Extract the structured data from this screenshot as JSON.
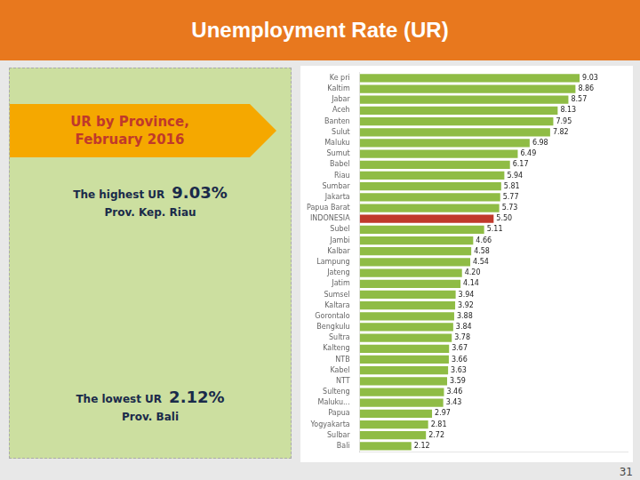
{
  "chart_data": {
    "type": "bar",
    "orientation": "horizontal",
    "title": "Unemployment Rate (UR)",
    "annotations": [
      "UR by Province,",
      "February 2016",
      "The highest UR",
      "9.03%",
      "Prov. Kep. Riau",
      "The lowest UR",
      "2.12%",
      "Prov. Bali",
      "31"
    ],
    "categories": [
      "Ke pri",
      "Kaltim",
      "Jabar",
      "Aceh",
      "Banten",
      "Sulut",
      "Maluku",
      "Sumut",
      "Babel",
      "Riau",
      "Sumbar",
      "Jakarta",
      "Papua Barat",
      "INDONESIA",
      "Subel",
      "Jambi",
      "Kalbar",
      "Lampung",
      "Jateng",
      "Jatim",
      "Sumsel",
      "Kaltara",
      "Gorontalo",
      "Bengkulu",
      "Sultra",
      "Kalteng",
      "NTB",
      "Kabel",
      "NTT",
      "Sulteng",
      "Maluku...",
      "Papua",
      "Yogyakarta",
      "Sulbar",
      "Bali"
    ],
    "values": [
      9.03,
      8.86,
      8.57,
      8.13,
      7.95,
      7.82,
      6.98,
      6.49,
      6.17,
      5.94,
      5.81,
      5.77,
      5.73,
      5.5,
      5.11,
      4.66,
      4.58,
      4.54,
      4.2,
      4.14,
      3.94,
      3.92,
      3.88,
      3.84,
      3.78,
      3.67,
      3.66,
      3.63,
      3.59,
      3.46,
      3.43,
      2.97,
      2.81,
      2.72,
      2.12
    ],
    "value_labels": [
      "9.03",
      "8.86",
      "8.57",
      "8.13",
      "7.95",
      "7.82",
      "6.98",
      "6.49",
      "6.17",
      "5.94",
      "5.81",
      "5.77",
      "5.73",
      "5.50",
      "5.11",
      "4.66",
      "4.58",
      "4.54",
      "4.20",
      "4.14",
      "3.94",
      "3.92",
      "3.88",
      "3.84",
      "3.78",
      "3.67",
      "3.66",
      "3.63",
      "3.59",
      "3.46",
      "3.43",
      "2.97",
      "2.81",
      "2.72",
      "2.12"
    ],
    "colors": [
      "#8fbc45",
      "#8fbc45",
      "#8fbc45",
      "#8fbc45",
      "#8fbc45",
      "#8fbc45",
      "#8fbc45",
      "#8fbc45",
      "#8fbc45",
      "#8fbc45",
      "#8fbc45",
      "#8fbc45",
      "#8fbc45",
      "#c0392b",
      "#8fbc45",
      "#8fbc45",
      "#8fbc45",
      "#8fbc45",
      "#8fbc45",
      "#8fbc45",
      "#8fbc45",
      "#8fbc45",
      "#8fbc45",
      "#8fbc45",
      "#8fbc45",
      "#8fbc45",
      "#8fbc45",
      "#8fbc45",
      "#8fbc45",
      "#8fbc45",
      "#8fbc45",
      "#8fbc45",
      "#8fbc45",
      "#8fbc45",
      "#8fbc45"
    ],
    "xlim": [
      0,
      11
    ],
    "grid": false,
    "data_labels": true,
    "tick_labels": "y"
  }
}
